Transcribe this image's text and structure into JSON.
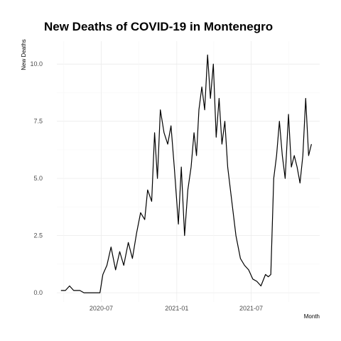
{
  "chart_data": {
    "type": "line",
    "title": "New Deaths of COVID-19 in Montenegro",
    "xlabel": "Month",
    "ylabel": "New Deaths",
    "x_ticks": [
      "2020-07",
      "2021-01",
      "2021-07"
    ],
    "y_ticks": [
      "0.0",
      "2.5",
      "5.0",
      "7.5",
      "10.0"
    ],
    "ylim": [
      -0.4,
      11
    ],
    "xlim": [
      "2020-03-15",
      "2021-12-15"
    ],
    "grid": true,
    "series": [
      {
        "x": [
          "2020-03-25",
          "2020-04-05",
          "2020-04-15",
          "2020-04-25",
          "2020-05-01",
          "2020-05-10",
          "2020-05-20",
          "2020-06-01",
          "2020-06-15",
          "2020-06-28",
          "2020-07-05",
          "2020-07-15",
          "2020-07-25",
          "2020-08-05",
          "2020-08-15",
          "2020-08-25",
          "2020-09-05",
          "2020-09-15",
          "2020-09-25",
          "2020-10-05",
          "2020-10-15",
          "2020-10-22",
          "2020-11-01",
          "2020-11-08",
          "2020-11-15",
          "2020-11-22",
          "2020-12-01",
          "2020-12-10",
          "2020-12-18",
          "2020-12-26",
          "2021-01-05",
          "2021-01-12",
          "2021-01-20",
          "2021-01-28",
          "2021-02-05",
          "2021-02-12",
          "2021-02-18",
          "2021-02-24",
          "2021-03-03",
          "2021-03-10",
          "2021-03-17",
          "2021-03-24",
          "2021-03-31",
          "2021-04-07",
          "2021-04-14",
          "2021-04-21",
          "2021-04-28",
          "2021-05-05",
          "2021-05-15",
          "2021-05-25",
          "2021-06-05",
          "2021-06-15",
          "2021-06-25",
          "2021-07-05",
          "2021-07-15",
          "2021-07-25",
          "2021-08-05",
          "2021-08-12",
          "2021-08-18",
          "2021-08-25",
          "2021-09-01",
          "2021-09-08",
          "2021-09-15",
          "2021-09-22",
          "2021-09-30",
          "2021-10-07",
          "2021-10-14",
          "2021-10-21",
          "2021-10-28",
          "2021-11-04",
          "2021-11-11",
          "2021-11-18",
          "2021-11-25"
        ],
        "y": [
          0.1,
          0.1,
          0.3,
          0.1,
          0.1,
          0.1,
          0.0,
          0.0,
          0.0,
          0.0,
          0.8,
          1.2,
          2.0,
          1.0,
          1.8,
          1.2,
          2.2,
          1.5,
          2.6,
          3.5,
          3.2,
          4.5,
          4.0,
          7.0,
          5.0,
          8.0,
          7.0,
          6.5,
          7.3,
          5.5,
          3.0,
          5.5,
          2.5,
          4.5,
          5.5,
          7.0,
          6.0,
          8.0,
          9.0,
          8.0,
          10.4,
          8.5,
          10.0,
          6.8,
          8.5,
          6.5,
          7.5,
          5.5,
          4.0,
          2.5,
          1.5,
          1.2,
          1.0,
          0.6,
          0.5,
          0.3,
          0.8,
          0.7,
          0.8,
          5.0,
          6.0,
          7.5,
          6.0,
          5.0,
          7.8,
          5.5,
          6.0,
          5.5,
          4.8,
          6.0,
          8.5,
          6.0,
          6.5
        ]
      }
    ]
  }
}
